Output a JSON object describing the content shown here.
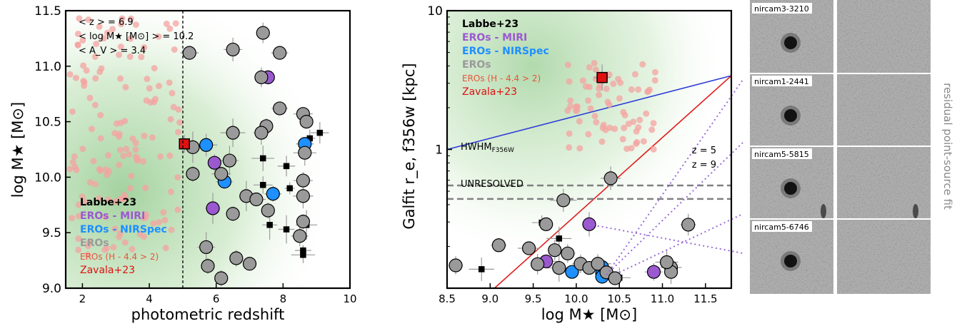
{
  "colors": {
    "labbe": "#000000",
    "miri": "#9b59d0",
    "nirspec": "#1e90ff",
    "eros": "#9a9a9a",
    "eros_h": "#e8543a",
    "zavala": "#e01010",
    "zavala_point": "#f4a3a0",
    "blue_line": "#2d3cd8",
    "red_line": "#e21d1d",
    "purple_dots": "#9a6ad8",
    "hwhm_line": "#808080",
    "green_bg": "#bfe0b8"
  },
  "panel_left": {
    "annotations": [
      "< z > = 6.9",
      "< log M★ [M⊙] > = 10.2",
      "< A_V > = 3.4"
    ]
  },
  "panel_mid": {
    "hwhm_label": "HWHM",
    "hwhm_sub": "F356W",
    "z5_label": "z = 5",
    "z9_label": "z = 9",
    "unresolved_label": "UNRESOLVED"
  },
  "legend": [
    {
      "label": "Labbe+23",
      "color_key": "labbe",
      "bold": true
    },
    {
      "label": "EROs - MIRI",
      "color_key": "miri",
      "bold": true
    },
    {
      "label": "EROs - NIRSpec",
      "color_key": "nirspec",
      "bold": true
    },
    {
      "label": "EROs",
      "color_key": "eros",
      "bold": true
    },
    {
      "label": "EROs (H - 4.4 > 2)",
      "color_key": "eros_h",
      "bold": false,
      "small": true
    },
    {
      "label": "Zavala+23",
      "color_key": "zavala",
      "bold": false
    }
  ],
  "cutouts": {
    "labels": [
      "nircam3-3210",
      "nircam1-2441",
      "nircam5-5815",
      "nircam5-6746"
    ],
    "side_label": "residual point-source fit"
  },
  "chart_data": [
    {
      "type": "scatter",
      "xlabel": "photometric redshift",
      "ylabel": "log M★ [M⊙]",
      "xlim": [
        1.5,
        10
      ],
      "ylim": [
        9.0,
        11.5
      ],
      "xticks": [
        2,
        4,
        6,
        8,
        10
      ],
      "yticks": [
        9.0,
        9.5,
        10.0,
        10.5,
        11.0,
        11.5
      ],
      "vline_x": 5.0,
      "series": [
        {
          "name": "Labbe+23",
          "marker": "square",
          "points": [
            [
              9.1,
              10.4
            ],
            [
              8.8,
              10.35
            ],
            [
              7.4,
              10.17
            ],
            [
              8.1,
              10.1
            ],
            [
              7.4,
              9.93
            ],
            [
              8.2,
              9.9
            ],
            [
              7.6,
              9.57
            ],
            [
              8.7,
              9.57
            ],
            [
              8.1,
              9.53
            ],
            [
              8.6,
              9.34
            ],
            [
              8.6,
              9.3
            ]
          ]
        },
        {
          "name": "EROs - MIRI",
          "marker": "circle",
          "points": [
            [
              7.55,
              10.9
            ],
            [
              5.95,
              10.13
            ],
            [
              5.9,
              9.72
            ]
          ]
        },
        {
          "name": "EROs - NIRSpec",
          "marker": "circle",
          "points": [
            [
              5.7,
              10.29
            ],
            [
              8.65,
              10.3
            ],
            [
              6.25,
              9.96
            ],
            [
              7.7,
              9.85
            ]
          ]
        },
        {
          "name": "EROs",
          "marker": "circle",
          "points": [
            [
              7.4,
              11.3
            ],
            [
              5.2,
              11.12
            ],
            [
              6.5,
              11.15
            ],
            [
              7.9,
              11.12
            ],
            [
              7.35,
              10.9
            ],
            [
              7.9,
              10.62
            ],
            [
              8.6,
              10.57
            ],
            [
              7.5,
              10.46
            ],
            [
              7.35,
              10.4
            ],
            [
              6.5,
              10.4
            ],
            [
              8.7,
              10.5
            ],
            [
              5.3,
              10.27
            ],
            [
              8.65,
              10.22
            ],
            [
              6.4,
              10.15
            ],
            [
              5.3,
              10.03
            ],
            [
              6.15,
              10.03
            ],
            [
              8.6,
              9.97
            ],
            [
              6.9,
              9.83
            ],
            [
              7.2,
              9.8
            ],
            [
              8.6,
              9.83
            ],
            [
              6.5,
              9.67
            ],
            [
              7.55,
              9.7
            ],
            [
              8.6,
              9.6
            ],
            [
              8.5,
              9.47
            ],
            [
              5.7,
              9.37
            ],
            [
              6.6,
              9.27
            ],
            [
              7.0,
              9.22
            ],
            [
              5.75,
              9.2
            ],
            [
              6.15,
              9.09
            ]
          ]
        },
        {
          "name": "Zavala+23",
          "marker": "square",
          "points": [
            [
              5.05,
              10.3
            ]
          ]
        }
      ]
    },
    {
      "type": "scatter",
      "xlabel": "log M★ [M⊙]",
      "ylabel": "Galfit r_e, f356w [kpc]",
      "xlim": [
        8.5,
        11.8
      ],
      "ylim": [
        0.1,
        10
      ],
      "yscale": "log",
      "xticks": [
        8.5,
        9.0,
        9.5,
        10.0,
        10.5,
        11.0,
        11.5
      ],
      "yticks": [
        1,
        10
      ],
      "lines": [
        {
          "name": "blue",
          "points": [
            [
              8.5,
              1.0
            ],
            [
              11.8,
              3.4
            ]
          ]
        },
        {
          "name": "red",
          "points": [
            [
              9.05,
              0.1
            ],
            [
              11.8,
              3.4
            ]
          ]
        }
      ],
      "hlines": [
        0.55,
        0.44
      ],
      "series": [
        {
          "name": "Labbe+23",
          "marker": "square",
          "points": [
            [
              9.6,
              0.297
            ],
            [
              9.8,
              0.228
            ],
            [
              8.9,
              0.137
            ],
            [
              10.5,
              0.119
            ]
          ]
        },
        {
          "name": "EROs - MIRI",
          "marker": "circle",
          "points": [
            [
              10.15,
              0.289
            ],
            [
              9.65,
              0.156
            ],
            [
              10.9,
              0.131
            ]
          ]
        },
        {
          "name": "EROs - NIRSpec",
          "marker": "circle",
          "points": [
            [
              9.95,
              0.131
            ],
            [
              10.3,
              0.142
            ],
            [
              10.3,
              0.128
            ],
            [
              10.3,
              0.121
            ]
          ]
        },
        {
          "name": "EROs",
          "marker": "circle",
          "points": [
            [
              8.6,
              0.146
            ],
            [
              9.1,
              0.204
            ],
            [
              9.45,
              0.194
            ],
            [
              9.65,
              0.289
            ],
            [
              9.75,
              0.188
            ],
            [
              9.9,
              0.178
            ],
            [
              9.55,
              0.149
            ],
            [
              9.8,
              0.14
            ],
            [
              10.05,
              0.15
            ],
            [
              10.15,
              0.14
            ],
            [
              10.25,
              0.15
            ],
            [
              10.35,
              0.13
            ],
            [
              10.45,
              0.118
            ],
            [
              11.1,
              0.141
            ],
            [
              11.1,
              0.131
            ],
            [
              11.05,
              0.154
            ],
            [
              11.3,
              0.287
            ],
            [
              10.4,
              0.62
            ],
            [
              9.85,
              0.43
            ]
          ]
        },
        {
          "name": "Zavala+23",
          "marker": "square",
          "points": [
            [
              10.3,
              3.3
            ]
          ]
        }
      ]
    }
  ]
}
